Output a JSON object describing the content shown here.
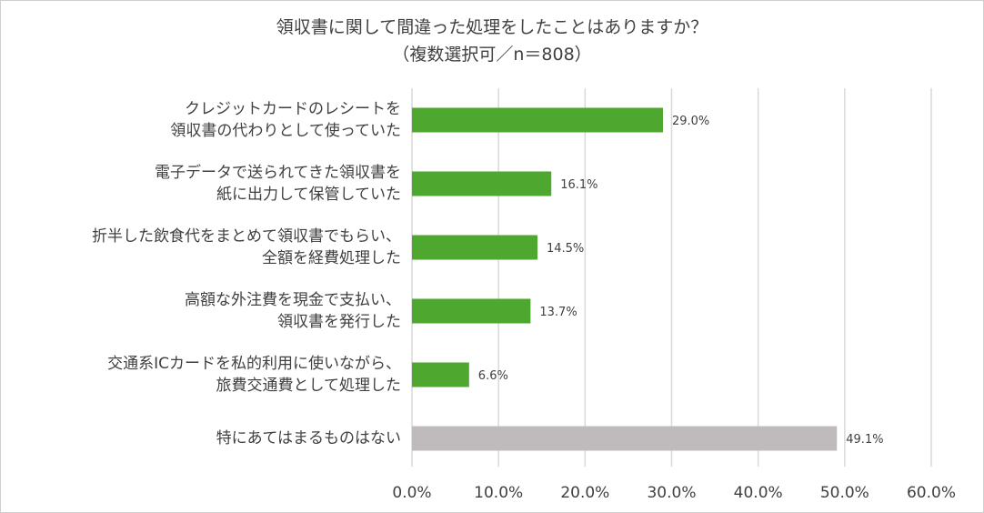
{
  "chart_data": {
    "type": "bar",
    "orientation": "horizontal",
    "title_line1": "領収書に関して間違った処理をしたことはありますか？",
    "title_line2": "（複数選択可／n＝808）",
    "categories": [
      [
        "クレジットカードのレシートを",
        "領収書の代わりとして使っていた"
      ],
      [
        "電子データで送られてきた領収書を",
        "紙に出力して保管していた"
      ],
      [
        "折半した飲食代をまとめて領収書でもらい、",
        "全額を経費処理した"
      ],
      [
        "高額な外注費を現金で支払い、",
        "領収書を発行した"
      ],
      [
        "交通系ICカードを私的利用に使いながら、",
        "旅費交通費として処理した"
      ],
      [
        "特にあてはまるものはない"
      ]
    ],
    "values": [
      29.0,
      16.1,
      14.5,
      13.7,
      6.6,
      49.1
    ],
    "value_labels": [
      "29.0%",
      "16.1%",
      "14.5%",
      "13.7%",
      "6.6%",
      "49.1%"
    ],
    "bar_colors": [
      "#4ea72e",
      "#4ea72e",
      "#4ea72e",
      "#4ea72e",
      "#4ea72e",
      "#bfbbbd"
    ],
    "xlim": [
      0,
      60
    ],
    "x_ticks": [
      0,
      10,
      20,
      30,
      40,
      50,
      60
    ],
    "x_tick_labels": [
      "0.0%",
      "10.0%",
      "20.0%",
      "30.0%",
      "40.0%",
      "50.0%",
      "60.0%"
    ],
    "grid": true,
    "legend": "none"
  }
}
